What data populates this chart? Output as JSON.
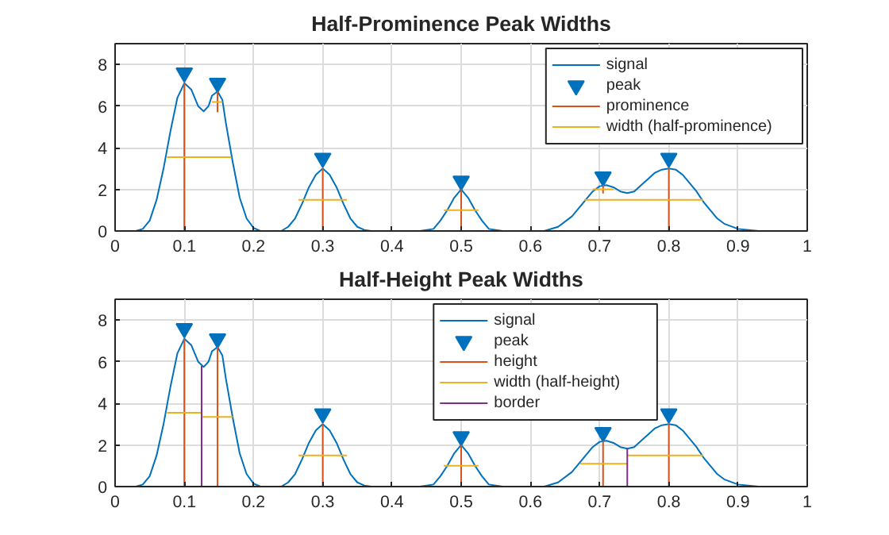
{
  "chart_data": [
    {
      "type": "line",
      "title": "Half-Prominence Peak Widths",
      "xlim": [
        0,
        1
      ],
      "ylim": [
        0,
        9
      ],
      "xticks": [
        0,
        0.1,
        0.2,
        0.3,
        0.4,
        0.5,
        0.6,
        0.7,
        0.8,
        0.9,
        1
      ],
      "yticks": [
        0,
        2,
        4,
        6,
        8
      ],
      "grid": true,
      "legend": "top right",
      "series": [
        {
          "name": "signal",
          "color": "#0072bd",
          "x": [
            0,
            0.03,
            0.04,
            0.05,
            0.06,
            0.07,
            0.08,
            0.09,
            0.1,
            0.11,
            0.12,
            0.128,
            0.135,
            0.14,
            0.148,
            0.155,
            0.16,
            0.17,
            0.18,
            0.19,
            0.2,
            0.21,
            0.24,
            0.25,
            0.26,
            0.27,
            0.28,
            0.29,
            0.3,
            0.31,
            0.32,
            0.33,
            0.34,
            0.35,
            0.36,
            0.37,
            0.44,
            0.46,
            0.47,
            0.48,
            0.49,
            0.5,
            0.51,
            0.52,
            0.53,
            0.54,
            0.56,
            0.62,
            0.64,
            0.66,
            0.68,
            0.69,
            0.7,
            0.71,
            0.72,
            0.73,
            0.74,
            0.75,
            0.76,
            0.77,
            0.78,
            0.79,
            0.8,
            0.81,
            0.82,
            0.83,
            0.84,
            0.85,
            0.86,
            0.87,
            0.88,
            0.9,
            0.93
          ],
          "values": [
            0,
            0,
            0.1,
            0.5,
            1.5,
            3.0,
            4.8,
            6.4,
            7.1,
            6.8,
            6.0,
            5.75,
            6.0,
            6.5,
            6.7,
            6.3,
            5.2,
            3.3,
            1.6,
            0.6,
            0.15,
            0,
            0,
            0.2,
            0.6,
            1.3,
            2.1,
            2.7,
            3.0,
            2.7,
            2.1,
            1.3,
            0.6,
            0.2,
            0.05,
            0,
            0,
            0.1,
            0.5,
            1.0,
            1.6,
            2.0,
            1.6,
            1.0,
            0.5,
            0.1,
            0,
            0,
            0.2,
            0.7,
            1.5,
            1.9,
            2.15,
            2.2,
            2.1,
            1.9,
            1.82,
            1.9,
            2.2,
            2.5,
            2.8,
            2.95,
            3.0,
            2.95,
            2.7,
            2.3,
            1.9,
            1.4,
            1.0,
            0.6,
            0.35,
            0.1,
            0
          ]
        },
        {
          "name": "peak",
          "type": "scatter",
          "marker": "triangle",
          "color": "#0072bd",
          "x": [
            0.1,
            0.148,
            0.3,
            0.5,
            0.705,
            0.8
          ],
          "values": [
            7.6,
            7.1,
            3.5,
            2.4,
            2.6,
            3.5
          ]
        },
        {
          "name": "prominence",
          "color": "#d95319",
          "x": [
            0.1,
            0.1,
            null,
            0.148,
            0.148,
            null,
            0.3,
            0.3,
            null,
            0.5,
            0.5,
            null,
            0.705,
            0.705,
            null,
            0.8,
            0.8
          ],
          "values": [
            0,
            7.1,
            null,
            5.7,
            6.7,
            null,
            0,
            3.0,
            null,
            0,
            2.0,
            null,
            1.8,
            2.2,
            null,
            0,
            3.0
          ]
        },
        {
          "name": "width (half-prominence)",
          "color": "#edb120",
          "x": [
            0.075,
            0.168,
            null,
            0.14,
            0.155,
            null,
            0.265,
            0.335,
            null,
            0.475,
            0.525,
            null,
            0.69,
            0.72,
            null,
            0.678,
            0.85
          ],
          "values": [
            3.55,
            3.55,
            null,
            6.2,
            6.2,
            null,
            1.5,
            1.5,
            null,
            1.0,
            1.0,
            null,
            2.0,
            2.0,
            null,
            1.5,
            1.5
          ]
        }
      ]
    },
    {
      "type": "line",
      "title": "Half-Height Peak Widths",
      "xlim": [
        0,
        1
      ],
      "ylim": [
        0,
        9
      ],
      "xticks": [
        0,
        0.1,
        0.2,
        0.3,
        0.4,
        0.5,
        0.6,
        0.7,
        0.8,
        0.9,
        1
      ],
      "yticks": [
        0,
        2,
        4,
        6,
        8
      ],
      "grid": true,
      "legend": "top right",
      "series": [
        {
          "name": "signal",
          "color": "#0072bd",
          "x": [
            0,
            0.03,
            0.04,
            0.05,
            0.06,
            0.07,
            0.08,
            0.09,
            0.1,
            0.11,
            0.12,
            0.128,
            0.135,
            0.14,
            0.148,
            0.155,
            0.16,
            0.17,
            0.18,
            0.19,
            0.2,
            0.21,
            0.24,
            0.25,
            0.26,
            0.27,
            0.28,
            0.29,
            0.3,
            0.31,
            0.32,
            0.33,
            0.34,
            0.35,
            0.36,
            0.37,
            0.44,
            0.46,
            0.47,
            0.48,
            0.49,
            0.5,
            0.51,
            0.52,
            0.53,
            0.54,
            0.56,
            0.62,
            0.64,
            0.66,
            0.68,
            0.69,
            0.7,
            0.71,
            0.72,
            0.73,
            0.74,
            0.75,
            0.76,
            0.77,
            0.78,
            0.79,
            0.8,
            0.81,
            0.82,
            0.83,
            0.84,
            0.85,
            0.86,
            0.87,
            0.88,
            0.9,
            0.93
          ],
          "values": [
            0,
            0,
            0.1,
            0.5,
            1.5,
            3.0,
            4.8,
            6.4,
            7.1,
            6.8,
            6.0,
            5.75,
            6.0,
            6.5,
            6.7,
            6.3,
            5.2,
            3.3,
            1.6,
            0.6,
            0.15,
            0,
            0,
            0.2,
            0.6,
            1.3,
            2.1,
            2.7,
            3.0,
            2.7,
            2.1,
            1.3,
            0.6,
            0.2,
            0.05,
            0,
            0,
            0.1,
            0.5,
            1.0,
            1.6,
            2.0,
            1.6,
            1.0,
            0.5,
            0.1,
            0,
            0,
            0.2,
            0.7,
            1.5,
            1.9,
            2.15,
            2.2,
            2.1,
            1.9,
            1.82,
            1.9,
            2.2,
            2.5,
            2.8,
            2.95,
            3.0,
            2.95,
            2.7,
            2.3,
            1.9,
            1.4,
            1.0,
            0.6,
            0.35,
            0.1,
            0
          ]
        },
        {
          "name": "peak",
          "type": "scatter",
          "marker": "triangle",
          "color": "#0072bd",
          "x": [
            0.1,
            0.148,
            0.3,
            0.5,
            0.705,
            0.8
          ],
          "values": [
            7.6,
            7.1,
            3.5,
            2.4,
            2.6,
            3.5
          ]
        },
        {
          "name": "height",
          "color": "#d95319",
          "x": [
            0.1,
            0.1,
            null,
            0.148,
            0.148,
            null,
            0.3,
            0.3,
            null,
            0.5,
            0.5,
            null,
            0.705,
            0.705,
            null,
            0.8,
            0.8
          ],
          "values": [
            0,
            7.1,
            null,
            0,
            6.7,
            null,
            0,
            3.0,
            null,
            0,
            2.0,
            null,
            0,
            2.2,
            null,
            0,
            3.0
          ]
        },
        {
          "name": "width (half-height)",
          "color": "#edb120",
          "x": [
            0.075,
            0.125,
            null,
            0.125,
            0.17,
            null,
            0.265,
            0.335,
            null,
            0.475,
            0.525,
            null,
            0.672,
            0.74,
            null,
            0.74,
            0.85
          ],
          "values": [
            3.55,
            3.55,
            null,
            3.35,
            3.35,
            null,
            1.5,
            1.5,
            null,
            1.0,
            1.0,
            null,
            1.1,
            1.1,
            null,
            1.5,
            1.5
          ]
        },
        {
          "name": "border",
          "color": "#7e2f8e",
          "x": [
            0.125,
            0.125,
            null,
            0.74,
            0.74
          ],
          "values": [
            0,
            5.8,
            null,
            0,
            1.85
          ]
        }
      ]
    }
  ]
}
